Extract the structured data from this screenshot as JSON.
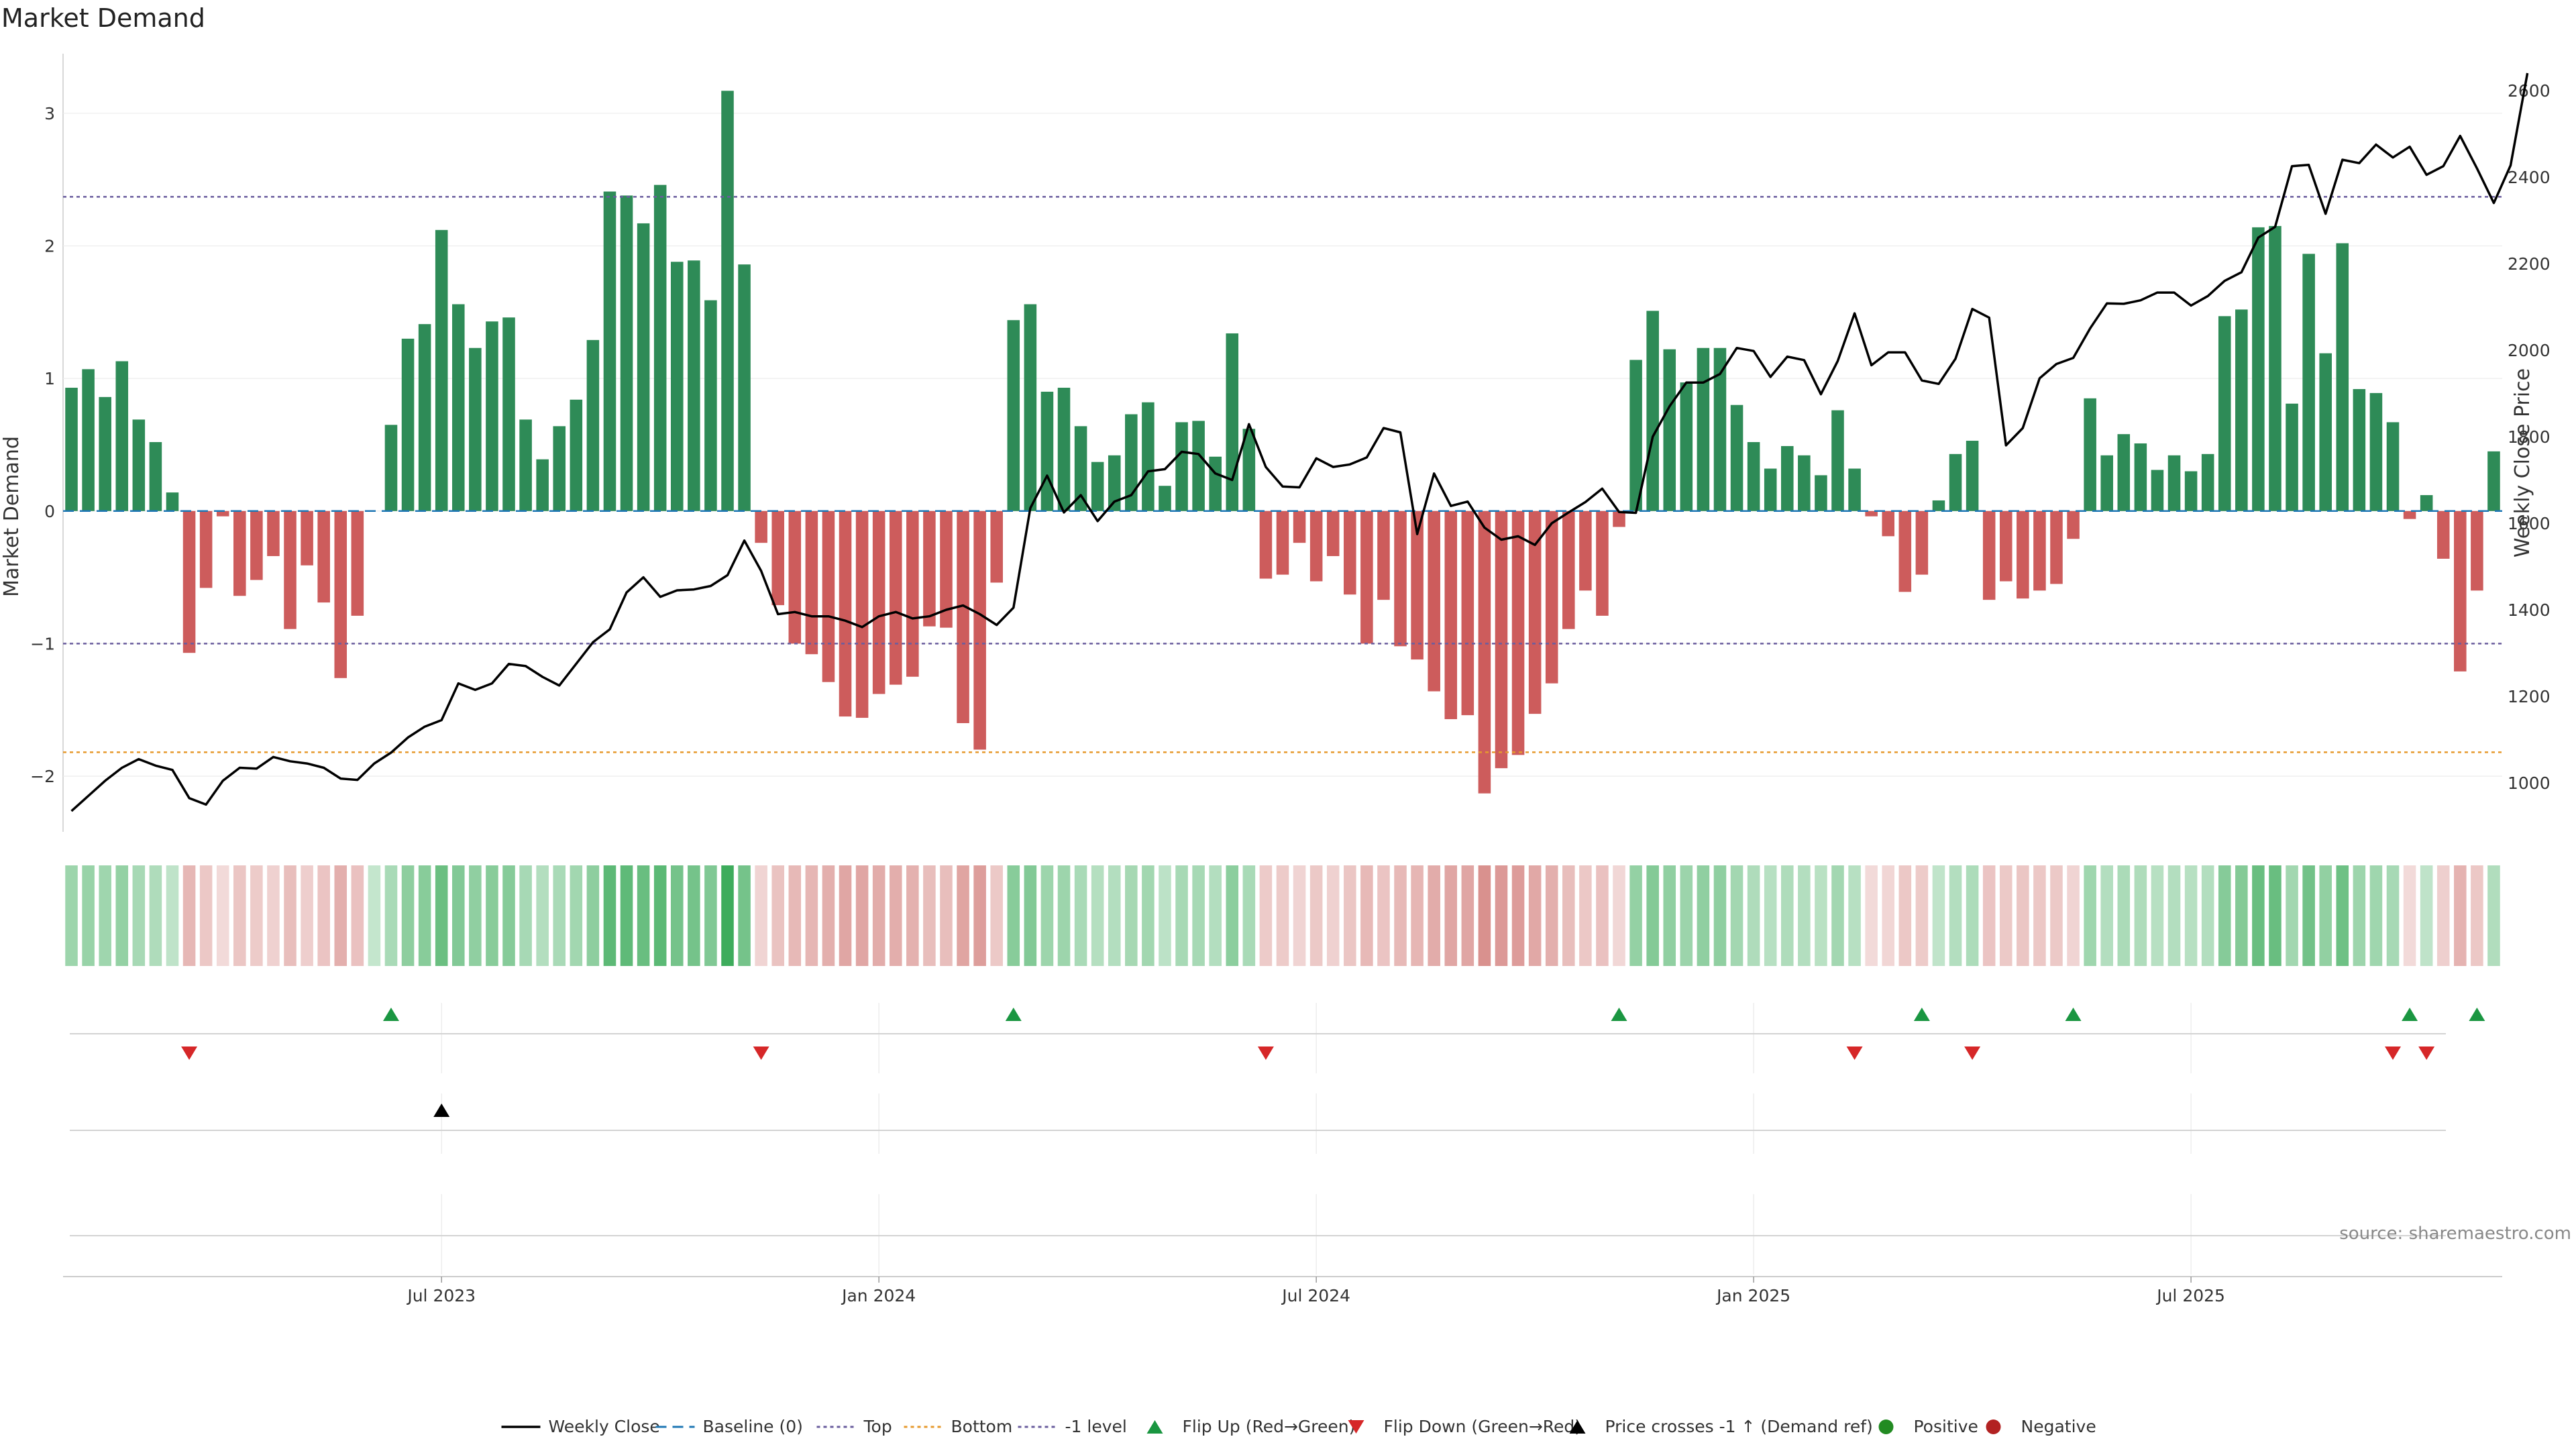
{
  "page": {
    "title": "Market Demand",
    "source": "source: sharemaestro.com"
  },
  "colors": {
    "positive_bar": "#2e8b57",
    "negative_bar": "#cd5c5c",
    "price_line": "#000000",
    "baseline": "#1f77b4",
    "top_line": "#6a5d9e",
    "bottom_line": "#e69a2e",
    "minus1_line": "#6a5d9e",
    "flip_up": "#1a9641",
    "flip_down": "#d62728",
    "cross": "#000000",
    "positive_dot": "#228b22",
    "negative_dot": "#b22222"
  },
  "chart_data": {
    "type": "bar+line",
    "title": "Market Demand",
    "ylabel": "Market Demand",
    "ylabel_right": "Weekly Close Price",
    "ylim": [
      -2.42,
      3.45
    ],
    "ylim_right": [
      887,
      2685
    ],
    "yticks": [
      -2,
      -1,
      0,
      1,
      2,
      3
    ],
    "ytick_labels": [
      "−2",
      "−1",
      "0",
      "1",
      "2",
      "3"
    ],
    "yticks_right": [
      1000,
      1200,
      1400,
      1600,
      1800,
      2000,
      2200,
      2400,
      2600
    ],
    "ytick_right_labels": [
      "1000",
      "1200",
      "1400",
      "1600",
      "1800",
      "2000",
      "2200",
      "2400",
      "2600"
    ],
    "x_ticks": [
      {
        "week": 22,
        "label": "Jul 2023"
      },
      {
        "week": 48,
        "label": "Jan 2024"
      },
      {
        "week": 74,
        "label": "Jul 2024"
      },
      {
        "week": 100,
        "label": "Jan 2025"
      },
      {
        "week": 126,
        "label": "Jul 2025"
      }
    ],
    "reference_lines": {
      "top": 2.37,
      "bottom": -1.82,
      "minus1": -1.0,
      "baseline": 0
    },
    "demand": [
      0.93,
      1.07,
      0.86,
      1.13,
      0.69,
      0.52,
      0.14,
      -1.07,
      -0.58,
      -0.04,
      -0.64,
      -0.52,
      -0.34,
      -0.89,
      -0.41,
      -0.69,
      -1.26,
      -0.79,
      0,
      0.65,
      1.3,
      1.41,
      2.12,
      1.56,
      1.23,
      1.43,
      1.46,
      0.69,
      0.39,
      0.64,
      0.84,
      1.29,
      2.41,
      2.38,
      2.17,
      2.46,
      1.88,
      1.89,
      1.59,
      3.17,
      1.86,
      -0.24,
      -0.71,
      -1.0,
      -1.08,
      -1.29,
      -1.55,
      -1.56,
      -1.38,
      -1.31,
      -1.25,
      -0.87,
      -0.88,
      -1.6,
      -1.8,
      -0.54,
      1.44,
      1.56,
      0.9,
      0.93,
      0.64,
      0.37,
      0.42,
      0.73,
      0.82,
      0.19,
      0.67,
      0.68,
      0.41,
      1.34,
      0.62,
      -0.51,
      -0.48,
      -0.24,
      -0.53,
      -0.34,
      -0.63,
      -1.0,
      -0.67,
      -1.02,
      -1.12,
      -1.36,
      -1.57,
      -1.54,
      -2.13,
      -1.94,
      -1.84,
      -1.53,
      -1.3,
      -0.89,
      -0.6,
      -0.79,
      -0.12,
      1.14,
      1.51,
      1.22,
      0.97,
      1.23,
      1.23,
      0.8,
      0.52,
      0.32,
      0.49,
      0.42,
      0.27,
      0.76,
      0.32,
      -0.04,
      -0.19,
      -0.61,
      -0.48,
      0.08,
      0.43,
      0.53,
      -0.67,
      -0.53,
      -0.66,
      -0.6,
      -0.55,
      -0.21,
      0.85,
      0.42,
      0.58,
      0.51,
      0.31,
      0.42,
      0.3,
      0.43,
      1.47,
      1.52,
      2.14,
      2.15,
      0.81,
      1.94,
      1.19,
      2.02,
      0.92,
      0.89,
      0.67,
      -0.06,
      0.12,
      -0.36,
      -1.21,
      -0.6,
      0.45
    ],
    "price": [
      935,
      970,
      1005,
      1035,
      1055,
      1040,
      1030,
      965,
      950,
      1005,
      1035,
      1033,
      1060,
      1050,
      1045,
      1035,
      1010,
      1007,
      1045,
      1070,
      1105,
      1130,
      1145,
      1230,
      1215,
      1230,
      1275,
      1270,
      1245,
      1225,
      1275,
      1325,
      1355,
      1440,
      1475,
      1430,
      1445,
      1447,
      1455,
      1480,
      1560,
      1490,
      1390,
      1395,
      1385,
      1385,
      1375,
      1360,
      1385,
      1395,
      1380,
      1385,
      1400,
      1410,
      1390,
      1365,
      1405,
      1635,
      1710,
      1625,
      1665,
      1605,
      1650,
      1665,
      1720,
      1725,
      1765,
      1760,
      1715,
      1700,
      1829,
      1730,
      1685,
      1683,
      1750,
      1730,
      1736,
      1752,
      1820,
      1810,
      1575,
      1715,
      1640,
      1650,
      1590,
      1562,
      1570,
      1550,
      1600,
      1625,
      1649,
      1680,
      1626,
      1624,
      1800,
      1870,
      1925,
      1925,
      1945,
      2005,
      1998,
      1938,
      1985,
      1977,
      1898,
      1975,
      2085,
      1965,
      1995,
      1995,
      1930,
      1922,
      1980,
      2095,
      2075,
      1780,
      1820,
      1935,
      1968,
      1982,
      2050,
      2108,
      2107,
      2115,
      2133,
      2133,
      2103,
      2125,
      2160,
      2180,
      2260,
      2285,
      2425,
      2428,
      2315,
      2440,
      2432,
      2475,
      2445,
      2470,
      2405,
      2425,
      2495,
      2420,
      2340,
      2427,
      2640
    ],
    "flip_up_weeks": [
      19,
      56,
      92,
      110,
      119,
      139,
      143
    ],
    "flip_down_weeks": [
      7,
      41,
      71,
      106,
      113,
      138,
      140
    ],
    "price_cross_weeks": [
      22
    ],
    "heat_rows_annotation": "color intensity by demand magnitude",
    "legend": [
      {
        "key": "close",
        "label": "Weekly Close"
      },
      {
        "key": "baseline",
        "label": "Baseline (0)"
      },
      {
        "key": "top",
        "label": "Top"
      },
      {
        "key": "bottom",
        "label": "Bottom"
      },
      {
        "key": "minus1",
        "label": "-1 level"
      },
      {
        "key": "flipup",
        "label": "Flip Up (Red→Green)"
      },
      {
        "key": "flipdown",
        "label": "Flip Down (Green→Red)"
      },
      {
        "key": "cross",
        "label": "Price crosses -1 ↑ (Demand ref)"
      },
      {
        "key": "pos",
        "label": "Positive"
      },
      {
        "key": "neg",
        "label": "Negative"
      }
    ],
    "legend_position": "bottom-center"
  }
}
